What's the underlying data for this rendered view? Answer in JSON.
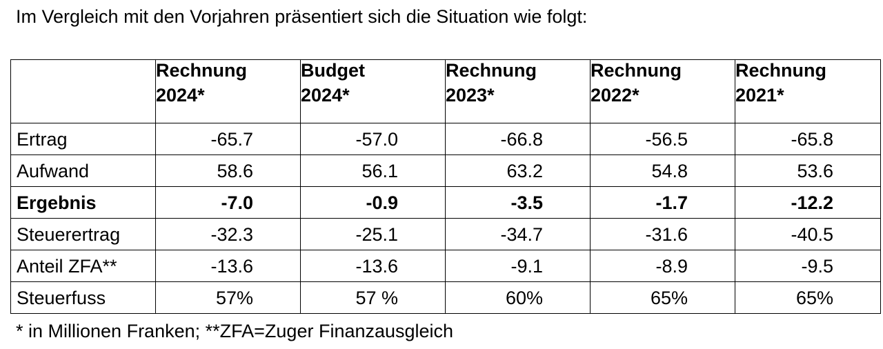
{
  "intro": "Im Vergleich mit den Vorjahren präsentiert sich die Situation wie folgt:",
  "table": {
    "headers": [
      {
        "line1": "",
        "line2": ""
      },
      {
        "line1": "Rechnung",
        "line2": "2024*"
      },
      {
        "line1": "Budget",
        "line2": "2024*"
      },
      {
        "line1": "Rechnung",
        "line2": "2023*"
      },
      {
        "line1": "Rechnung",
        "line2": "2022*"
      },
      {
        "line1": "Rechnung",
        "line2": "2021*"
      }
    ],
    "rows": [
      {
        "label": "Ertrag",
        "values": [
          "-65.7",
          "-57.0",
          "-66.8",
          "-56.5",
          "-65.8"
        ],
        "bold": false
      },
      {
        "label": "Aufwand",
        "values": [
          "58.6",
          "56.1",
          "63.2",
          "54.8",
          "53.6"
        ],
        "bold": false
      },
      {
        "label": "Ergebnis",
        "values": [
          "-7.0",
          "-0.9",
          "-3.5",
          "-1.7",
          "-12.2"
        ],
        "bold": true
      },
      {
        "label": "Steuerertrag",
        "values": [
          "-32.3",
          "-25.1",
          "-34.7",
          "-31.6",
          "-40.5"
        ],
        "bold": false
      },
      {
        "label": "Anteil ZFA**",
        "values": [
          "-13.6",
          "-13.6",
          "-9.1",
          "-8.9",
          "-9.5"
        ],
        "bold": false
      },
      {
        "label": "Steuerfuss",
        "values": [
          "57%",
          "57 %",
          "60%",
          "65%",
          "65%"
        ],
        "bold": false
      }
    ]
  },
  "footnote": "* in Millionen Franken; **ZFA=Zuger Finanzausgleich"
}
